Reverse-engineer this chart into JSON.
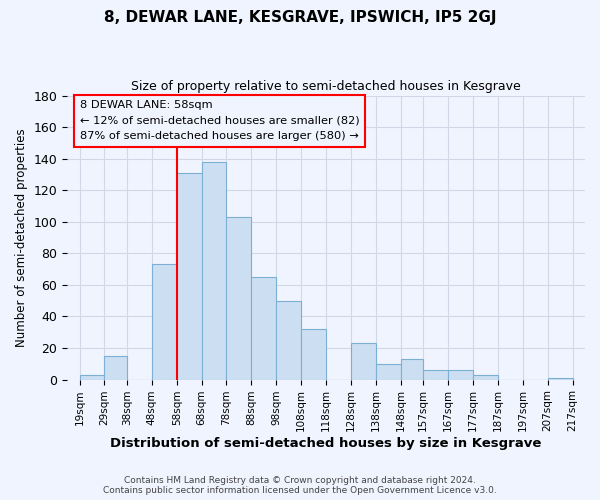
{
  "title": "8, DEWAR LANE, KESGRAVE, IPSWICH, IP5 2GJ",
  "subtitle": "Size of property relative to semi-detached houses in Kesgrave",
  "xlabel": "Distribution of semi-detached houses by size in Kesgrave",
  "ylabel": "Number of semi-detached properties",
  "footer_line1": "Contains HM Land Registry data © Crown copyright and database right 2024.",
  "footer_line2": "Contains public sector information licensed under the Open Government Licence v3.0.",
  "bar_left_edges": [
    19,
    29,
    38,
    48,
    58,
    68,
    78,
    88,
    98,
    108,
    118,
    128,
    138,
    148,
    157,
    167,
    177,
    187,
    197,
    207
  ],
  "bar_widths": [
    10,
    9,
    10,
    10,
    10,
    10,
    10,
    10,
    10,
    10,
    10,
    10,
    10,
    9,
    10,
    10,
    10,
    10,
    10,
    10
  ],
  "bar_heights": [
    3,
    15,
    0,
    73,
    131,
    138,
    103,
    65,
    50,
    32,
    0,
    23,
    10,
    13,
    6,
    6,
    3,
    0,
    0,
    1
  ],
  "bar_color": "#ccdff2",
  "bar_edge_color": "#7bafd4",
  "x_tick_labels": [
    "19sqm",
    "29sqm",
    "38sqm",
    "48sqm",
    "58sqm",
    "68sqm",
    "78sqm",
    "88sqm",
    "98sqm",
    "108sqm",
    "118sqm",
    "128sqm",
    "138sqm",
    "148sqm",
    "157sqm",
    "167sqm",
    "177sqm",
    "187sqm",
    "197sqm",
    "207sqm",
    "217sqm"
  ],
  "x_tick_positions": [
    19,
    29,
    38,
    48,
    58,
    68,
    78,
    88,
    98,
    108,
    118,
    128,
    138,
    148,
    157,
    167,
    177,
    187,
    197,
    207,
    217
  ],
  "ylim": [
    0,
    180
  ],
  "yticks": [
    0,
    20,
    40,
    60,
    80,
    100,
    120,
    140,
    160,
    180
  ],
  "property_line_x": 58,
  "annotation_title": "8 DEWAR LANE: 58sqm",
  "annotation_line1": "← 12% of semi-detached houses are smaller (82)",
  "annotation_line2": "87% of semi-detached houses are larger (580) →",
  "grid_color": "#d0d8e8",
  "background_color": "#f0f4ff"
}
